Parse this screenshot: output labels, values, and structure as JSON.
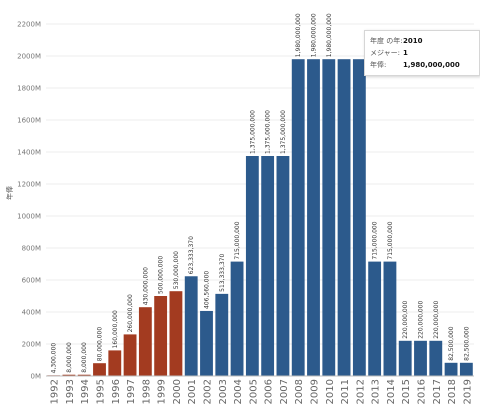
{
  "chart_data": {
    "type": "bar",
    "ylabel": "年俸",
    "ylim": [
      0,
      2300
    ],
    "yticks": [
      0,
      200,
      400,
      600,
      800,
      1000,
      1200,
      1400,
      1600,
      1800,
      2000,
      2200
    ],
    "ytick_labels": [
      "0M",
      "200M",
      "400M",
      "600M",
      "800M",
      "1000M",
      "1200M",
      "1400M",
      "1600M",
      "1800M",
      "2000M",
      "2200M"
    ],
    "categories": [
      "1992",
      "1993",
      "1994",
      "1995",
      "1996",
      "1997",
      "1998",
      "1999",
      "2000",
      "2001",
      "2002",
      "2003",
      "2004",
      "2005",
      "2006",
      "2007",
      "2008",
      "2009",
      "2010",
      "2011",
      "2012",
      "2013",
      "2014",
      "2015",
      "2016",
      "2017",
      "2018",
      "2019"
    ],
    "values": [
      4.3,
      8.0,
      8.0,
      80.0,
      160.0,
      260.0,
      430.0,
      500.0,
      530.0,
      623.33337,
      406.56,
      513.33337,
      715.0,
      1375.0,
      1375.0,
      1375.0,
      1980.0,
      1980.0,
      1980.0,
      1980.0,
      1980.0,
      715.0,
      715.0,
      220.0,
      220.0,
      220.0,
      82.5,
      82.5
    ],
    "data_labels": [
      "4,300,000",
      "8,000,000",
      "8,000,000",
      "80,000,000",
      "160,000,000",
      "260,000,000",
      "430,000,000",
      "500,000,000",
      "530,000,000",
      "623,333,370",
      "406,560,000",
      "513,333,370",
      "715,000,000",
      "1,375,000,000",
      "1,375,000,000",
      "1,375,000,000",
      "1,980,000,000",
      "1,980,000,000",
      "1,980,000,000",
      "",
      "",
      "715,000,000",
      "715,000,000",
      "220,000,000",
      "220,000,000",
      "220,000,000",
      "82,500,000",
      "82,500,000"
    ],
    "bar_colors": [
      "#a33b20",
      "#a33b20",
      "#a33b20",
      "#a33b20",
      "#a33b20",
      "#a33b20",
      "#a33b20",
      "#a33b20",
      "#a33b20",
      "#2c5a8c",
      "#2c5a8c",
      "#2c5a8c",
      "#2c5a8c",
      "#2c5a8c",
      "#2c5a8c",
      "#2c5a8c",
      "#2c5a8c",
      "#2c5a8c",
      "#2c5a8c",
      "#2c5a8c",
      "#2c5a8c",
      "#2c5a8c",
      "#2c5a8c",
      "#2c5a8c",
      "#2c5a8c",
      "#2c5a8c",
      "#2c5a8c",
      "#2c5a8c"
    ],
    "grid": true
  },
  "tooltip": {
    "rows": [
      {
        "key": "年度 の年:",
        "value": "2010"
      },
      {
        "key": "メジャー:",
        "value": "1"
      },
      {
        "key": "年俸:",
        "value": "1,980,000,000"
      }
    ]
  }
}
